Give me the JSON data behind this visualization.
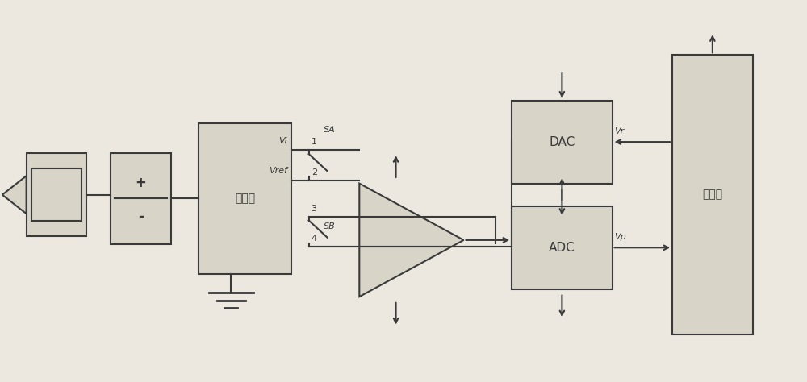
{
  "bg_color": "#ece8e0",
  "line_color": "#3a3a3a",
  "box_fill": "#d8d4c8",
  "labels": {
    "isolator": "隔离器",
    "adc": "ADC",
    "dac": "DAC",
    "controller": "控制器",
    "Vi": "Vi",
    "Vref": "Vref",
    "SA": "SA",
    "SB": "SB",
    "Vp": "Vp",
    "Vr": "Vr",
    "plus": "+",
    "minus": "-",
    "num1": "1",
    "num2": "2",
    "num3": "3",
    "num4": "4"
  }
}
